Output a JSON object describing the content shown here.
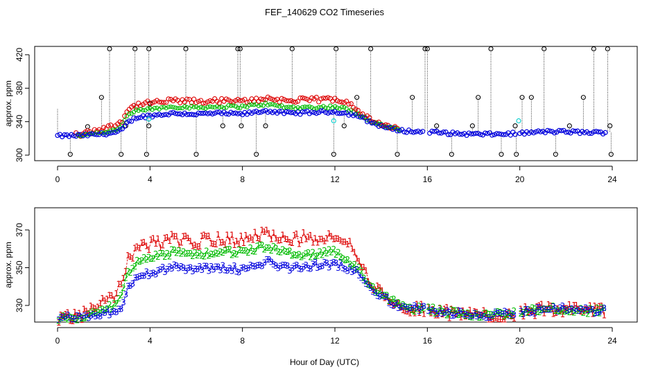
{
  "figure": {
    "title": "FEF_140629  CO2 Timeseries",
    "xlabel": "Hour of Day (UTC)"
  },
  "colors": {
    "ch0": "#000000",
    "ch1": "#dd0000",
    "ch2": "#00bb00",
    "ch3": "#0000dd",
    "aux": "#00cccc"
  },
  "chart_data": [
    {
      "type": "scatter",
      "ylabel": "approx. ppm",
      "xlim": [
        0,
        24
      ],
      "ylim": [
        300,
        430
      ],
      "xticks": [
        "0",
        "4",
        "8",
        "12",
        "16",
        "20",
        "24"
      ],
      "yticks": [
        "300",
        "340",
        "380",
        "420"
      ],
      "marker": "circle",
      "profile_knots": {
        "x": [
          0,
          1.0,
          1.8,
          2.5,
          2.8,
          3.0,
          3.4,
          4,
          5,
          6,
          7,
          8,
          9,
          10,
          11,
          12,
          12.5,
          13.0,
          13.5,
          14.0,
          14.5,
          15.0,
          15.5,
          16.0,
          17,
          18,
          19,
          20,
          21,
          22,
          23,
          23.7
        ],
        "ch3": [
          323,
          323.5,
          325,
          327,
          330,
          338,
          345,
          347,
          350,
          349,
          350,
          349,
          353,
          350,
          351,
          352,
          350,
          347,
          340,
          335,
          331,
          329,
          328,
          328,
          326,
          325,
          325,
          326,
          328,
          328,
          327,
          327
        ],
        "ch2_offset": [
          0,
          0.5,
          2,
          3,
          6,
          8,
          8,
          8,
          8,
          8,
          8,
          9,
          8,
          7,
          6,
          6,
          5,
          3,
          1,
          1,
          1,
          0,
          0,
          0,
          0,
          0,
          0,
          0,
          0,
          0,
          0,
          0
        ],
        "ch1_offset": [
          0,
          1,
          6,
          8,
          12,
          15,
          15,
          15,
          15,
          15,
          15,
          15,
          15,
          15,
          15,
          15,
          15,
          7,
          2,
          1,
          1,
          0,
          0,
          0,
          0,
          0,
          0,
          0,
          0,
          0,
          0,
          0
        ]
      },
      "gaps": [
        [
          15.85,
          16.0
        ],
        [
          19.85,
          20.0
        ]
      ],
      "series": [
        {
          "name": "ch0",
          "color": "#000000",
          "x": [
            0.55,
            1.3,
            1.9,
            2.25,
            2.75,
            2.95,
            3.35,
            3.85,
            3.95,
            3.95,
            4.0,
            5.55,
            6.0,
            7.15,
            7.8,
            7.9,
            7.95,
            8.6,
            9.0,
            10.15,
            11.95,
            12.05,
            12.4,
            12.95,
            13.55,
            14.7,
            15.35,
            15.9,
            16.0,
            16.4,
            17.05,
            17.95,
            18.2,
            18.75,
            19.2,
            19.8,
            19.85,
            20.1,
            20.5,
            21.05,
            21.55,
            22.15,
            22.75,
            23.2,
            23.8,
            23.9,
            23.95
          ],
          "y": [
            301,
            334,
            369,
            427,
            301,
            335,
            427,
            301,
            335,
            427,
            362,
            427,
            301,
            335,
            427,
            427,
            335,
            301,
            335,
            427,
            301,
            427,
            335,
            369,
            427,
            301,
            369,
            427,
            427,
            335,
            301,
            335,
            369,
            427,
            301,
            335,
            301,
            369,
            369,
            427,
            301,
            335,
            369,
            427,
            427,
            335,
            301
          ]
        }
      ]
    },
    {
      "type": "scatter",
      "ylabel": "approx. ppm",
      "xlim": [
        0,
        24
      ],
      "ylim": [
        320,
        380
      ],
      "xticks": [
        "0",
        "4",
        "8",
        "12",
        "16",
        "20",
        "24"
      ],
      "yticks": [
        "330",
        "350",
        "370"
      ],
      "series": [
        {
          "name": "1",
          "color": "#dd0000"
        },
        {
          "name": "2",
          "color": "#00bb00"
        },
        {
          "name": "3",
          "color": "#0000dd"
        }
      ]
    }
  ]
}
